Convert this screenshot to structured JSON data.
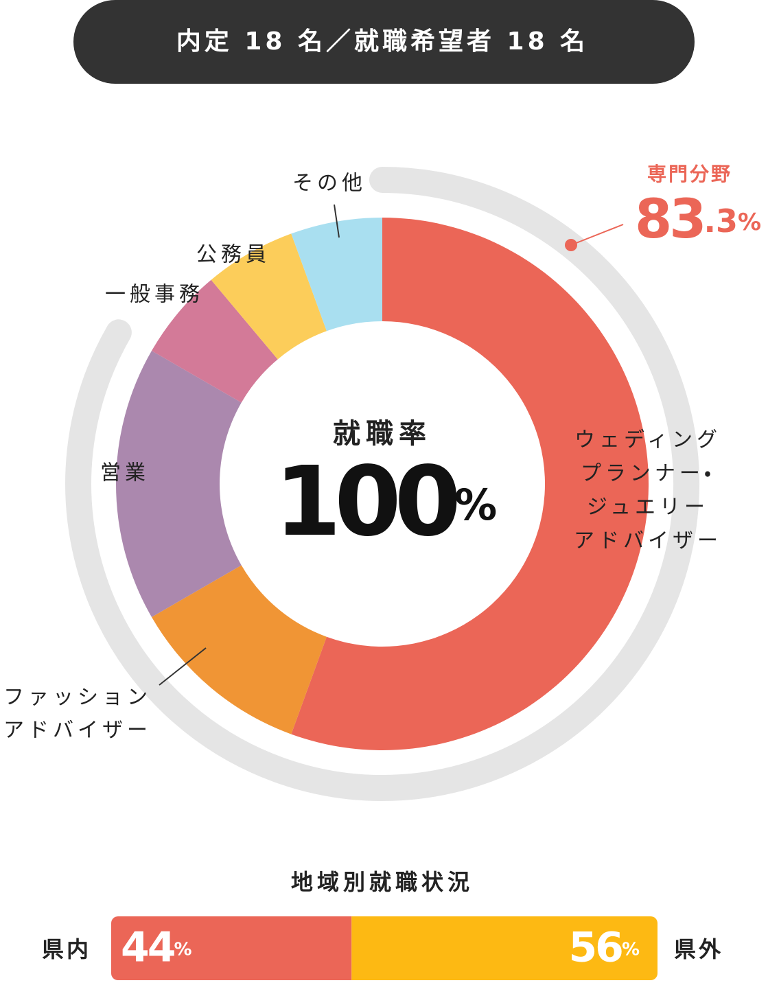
{
  "header": {
    "title": "内定 18 名／就職希望者 18 名"
  },
  "chart_data": {
    "type": "donut",
    "categories": [
      [
        "ウェディング",
        "プランナー・",
        "ジュエリー",
        "アドバイザー"
      ],
      [
        "ファッション",
        "アドバイザー"
      ],
      [
        "営業"
      ],
      [
        "一般事務"
      ],
      [
        "公務員"
      ],
      [
        "その他"
      ]
    ],
    "values": [
      10,
      2,
      3,
      1,
      1,
      1
    ],
    "colors": [
      "#eb6657",
      "#f09535",
      "#ab88ae",
      "#d37a98",
      "#fccd5a",
      "#a9dff0"
    ],
    "center": {
      "label": "就職率",
      "value": 100,
      "unit": "%"
    },
    "specialty": {
      "label": "専門分野",
      "value": 83.3,
      "integer": "83",
      "decimal": ".3",
      "unit": "%",
      "color": "#eb6657",
      "track_color": "#e5e5e5"
    }
  },
  "region": {
    "title": "地域別就職状況",
    "type": "stacked-bar",
    "unit": "%",
    "series": [
      {
        "name": "県内",
        "value": 44,
        "color": "#eb6657"
      },
      {
        "name": "県外",
        "value": 56,
        "color": "#fdb913"
      }
    ]
  }
}
